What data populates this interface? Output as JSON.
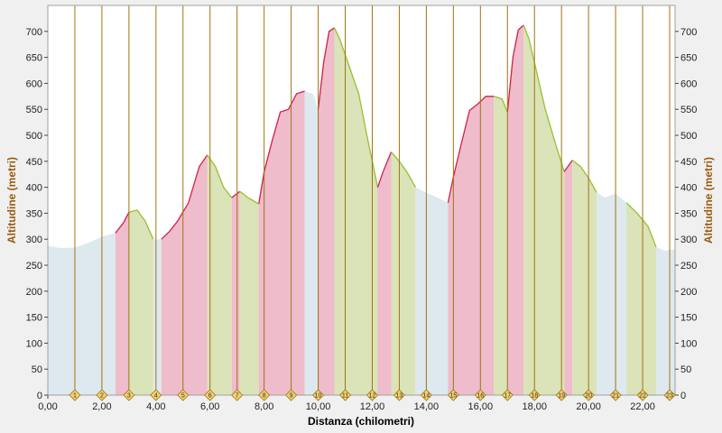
{
  "colors": {
    "background": "#f0f0f0",
    "plot_bg": "#ffffff",
    "flat_fill": "#dde9ee",
    "uphill_fill": "#eebccb",
    "downhill_fill": "#dbe3b8",
    "uphill_line": "#d0204a",
    "downhill_line": "#98c030",
    "marker_line": "#a07410",
    "marker_fill": "#f0d070",
    "axis_title_y": "#9a5a10",
    "axis_title_x": "#000000"
  },
  "chart_data": {
    "type": "area",
    "xlabel": "Distanza (chilometri)",
    "ylabel_left": "Altitudine (metri)",
    "ylabel_right": "Altitudine (metri)",
    "xlim": [
      0,
      23.2
    ],
    "ylim": [
      0,
      750
    ],
    "x_ticks": [
      "0,00",
      "2,00",
      "4,00",
      "6,00",
      "8,00",
      "10,00",
      "12,00",
      "14,00",
      "16,00",
      "18,00",
      "20,00",
      "22,00"
    ],
    "y_ticks": [
      "0",
      "50",
      "100",
      "150",
      "200",
      "250",
      "300",
      "350",
      "400",
      "450",
      "500",
      "550",
      "600",
      "650",
      "700"
    ],
    "km_markers": [
      "1",
      "2",
      "3",
      "4",
      "5",
      "6",
      "7",
      "8",
      "9",
      "10",
      "11",
      "12",
      "13",
      "14",
      "15",
      "16",
      "17",
      "18",
      "19",
      "20",
      "21",
      "22",
      "23"
    ],
    "grid": false,
    "series": [
      {
        "x": [
          0,
          0.5,
          1.0,
          1.5,
          2.0,
          2.5,
          2.8,
          3.0,
          3.3,
          3.6,
          3.9,
          4.2,
          4.5,
          4.8,
          5.2,
          5.6,
          5.9,
          6.2,
          6.5,
          6.8,
          7.1,
          7.4,
          7.8,
          8.0,
          8.3,
          8.6,
          8.9,
          9.2,
          9.5,
          9.8,
          10.0,
          10.2,
          10.4,
          10.6,
          10.8,
          11.1,
          11.5,
          11.8,
          12.0,
          12.2,
          12.4,
          12.7,
          13.0,
          13.3,
          13.6,
          13.9,
          14.2,
          14.5,
          14.8,
          15.0,
          15.3,
          15.6,
          15.9,
          16.2,
          16.5,
          16.8,
          17.0,
          17.2,
          17.4,
          17.6,
          17.8,
          18.0,
          18.4,
          18.8,
          19.1,
          19.4,
          19.7,
          20.0,
          20.3,
          20.6,
          21.0,
          21.4,
          21.8,
          22.2,
          22.5,
          22.8,
          23.2
        ],
        "y": [
          287,
          283,
          284,
          293,
          305,
          312,
          332,
          352,
          356,
          335,
          300,
          300,
          315,
          335,
          370,
          440,
          462,
          440,
          400,
          380,
          392,
          380,
          368,
          430,
          490,
          545,
          550,
          580,
          585,
          580,
          550,
          640,
          700,
          707,
          685,
          640,
          580,
          500,
          450,
          400,
          430,
          468,
          450,
          428,
          400,
          392,
          385,
          378,
          370,
          420,
          485,
          548,
          560,
          575,
          575,
          570,
          545,
          650,
          703,
          712,
          685,
          640,
          550,
          480,
          430,
          452,
          440,
          418,
          390,
          380,
          388,
          370,
          350,
          325,
          285,
          278,
          281
        ]
      }
    ],
    "segments": [
      {
        "type": "flat",
        "x0": 0,
        "x1": 2.5
      },
      {
        "type": "uphill",
        "x0": 2.5,
        "x1": 3.0
      },
      {
        "type": "downhill",
        "x0": 3.0,
        "x1": 3.9
      },
      {
        "type": "flat",
        "x0": 3.9,
        "x1": 4.2
      },
      {
        "type": "uphill",
        "x0": 4.2,
        "x1": 5.9
      },
      {
        "type": "downhill",
        "x0": 5.9,
        "x1": 6.8
      },
      {
        "type": "uphill",
        "x0": 6.8,
        "x1": 7.1
      },
      {
        "type": "downhill",
        "x0": 7.1,
        "x1": 7.8
      },
      {
        "type": "uphill",
        "x0": 7.8,
        "x1": 9.5
      },
      {
        "type": "flat",
        "x0": 9.5,
        "x1": 10.0
      },
      {
        "type": "uphill",
        "x0": 10.0,
        "x1": 10.6
      },
      {
        "type": "downhill",
        "x0": 10.6,
        "x1": 12.2
      },
      {
        "type": "uphill",
        "x0": 12.2,
        "x1": 12.7
      },
      {
        "type": "downhill",
        "x0": 12.7,
        "x1": 13.6
      },
      {
        "type": "flat",
        "x0": 13.6,
        "x1": 14.8
      },
      {
        "type": "uphill",
        "x0": 14.8,
        "x1": 16.5
      },
      {
        "type": "downhill",
        "x0": 16.5,
        "x1": 17.0
      },
      {
        "type": "uphill",
        "x0": 17.0,
        "x1": 17.6
      },
      {
        "type": "downhill",
        "x0": 17.6,
        "x1": 19.1
      },
      {
        "type": "uphill",
        "x0": 19.1,
        "x1": 19.4
      },
      {
        "type": "downhill",
        "x0": 19.4,
        "x1": 20.3
      },
      {
        "type": "flat",
        "x0": 20.3,
        "x1": 21.4
      },
      {
        "type": "downhill",
        "x0": 21.4,
        "x1": 22.5
      },
      {
        "type": "flat",
        "x0": 22.5,
        "x1": 23.2
      }
    ]
  }
}
